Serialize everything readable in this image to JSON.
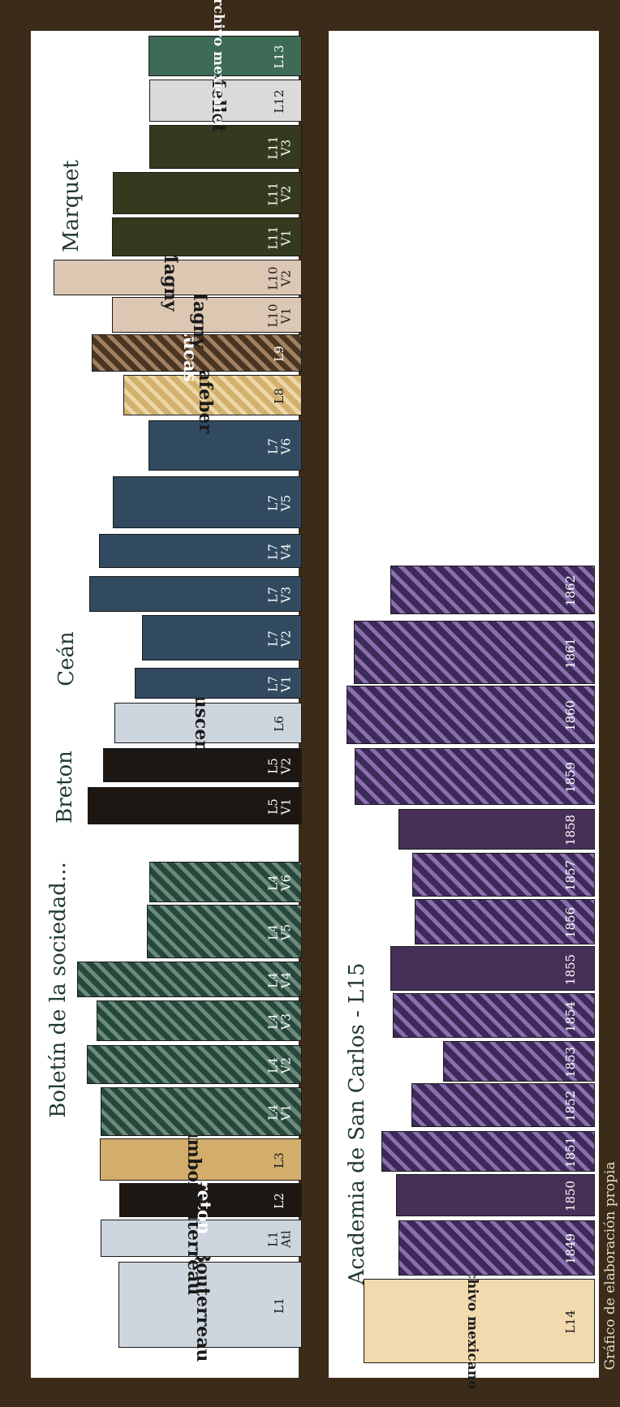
{
  "group_labels": {
    "boletin": "Boletín de la sociedad...",
    "breton": "Breton",
    "cean": "Ceán",
    "marquet": "Marquet",
    "academia": "Academia de San Carlos - L15"
  },
  "credit": "Gráfico de elaboración propia",
  "books_top": [
    {
      "spine": "Bouterreau",
      "code": [
        "L1"
      ]
    },
    {
      "spine": "Bouterreau",
      "code": [
        "L1",
        "Atl"
      ]
    },
    {
      "spine": "Breton",
      "code": [
        "L2"
      ]
    },
    {
      "spine": "Humboldt",
      "code": [
        "L3"
      ]
    },
    {
      "spine": "",
      "code": [
        "L4",
        "V1"
      ]
    },
    {
      "spine": "",
      "code": [
        "L4",
        "V2"
      ]
    },
    {
      "spine": "",
      "code": [
        "L4",
        "V3"
      ]
    },
    {
      "spine": "",
      "code": [
        "L4",
        "V4"
      ]
    },
    {
      "spine": "",
      "code": [
        "L4",
        "V5"
      ]
    },
    {
      "spine": "",
      "code": [
        "L4",
        "V6"
      ]
    },
    {
      "spine": "",
      "code": [
        "L5",
        "V1"
      ]
    },
    {
      "spine": "",
      "code": [
        "L5",
        "V2"
      ]
    },
    {
      "spine": "Buscemi",
      "code": [
        "L6"
      ]
    },
    {
      "spine": "",
      "code": [
        "L7",
        "V1"
      ]
    },
    {
      "spine": "",
      "code": [
        "L7",
        "V2"
      ]
    },
    {
      "spine": "",
      "code": [
        "L7",
        "V3"
      ]
    },
    {
      "spine": "",
      "code": [
        "L7",
        "V4"
      ]
    },
    {
      "spine": "",
      "code": [
        "L7",
        "V5"
      ]
    },
    {
      "spine": "",
      "code": [
        "L7",
        "V6"
      ]
    },
    {
      "spine": "Lafeber",
      "code": [
        "L8"
      ]
    },
    {
      "spine": "Lucas",
      "code": [
        "L9"
      ]
    },
    {
      "spine": "Magny",
      "code": [
        "L10",
        "V1"
      ]
    },
    {
      "spine": "Magny",
      "code": [
        "L10",
        "V2"
      ]
    },
    {
      "spine": "",
      "code": [
        "L11",
        "V1"
      ]
    },
    {
      "spine": "",
      "code": [
        "L11",
        "V2"
      ]
    },
    {
      "spine": "",
      "code": [
        "L11",
        "V3"
      ]
    },
    {
      "spine": "Mellet",
      "code": [
        "L12"
      ]
    },
    {
      "spine": "Archivo mexicano",
      "code": [
        "L13"
      ]
    }
  ],
  "books_bottom": [
    {
      "spine": "Archivo mexicano",
      "code": [
        "L14"
      ]
    },
    {
      "spine": "",
      "code": [
        "1849"
      ]
    },
    {
      "spine": "",
      "code": [
        "1850"
      ]
    },
    {
      "spine": "",
      "code": [
        "1851"
      ]
    },
    {
      "spine": "",
      "code": [
        "1852"
      ]
    },
    {
      "spine": "",
      "code": [
        "1853"
      ]
    },
    {
      "spine": "",
      "code": [
        "1854"
      ]
    },
    {
      "spine": "",
      "code": [
        "1855"
      ]
    },
    {
      "spine": "",
      "code": [
        "1856"
      ]
    },
    {
      "spine": "",
      "code": [
        "1857"
      ]
    },
    {
      "spine": "",
      "code": [
        "1858"
      ]
    },
    {
      "spine": "",
      "code": [
        "1859"
      ]
    },
    {
      "spine": "",
      "code": [
        "1860"
      ]
    },
    {
      "spine": "",
      "code": [
        "1861"
      ]
    },
    {
      "spine": "",
      "code": [
        "1862"
      ]
    }
  ]
}
